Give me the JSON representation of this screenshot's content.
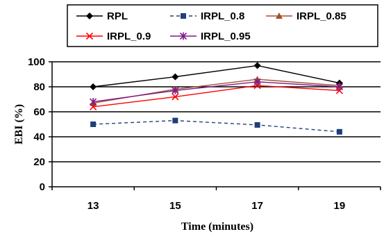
{
  "chart_data": {
    "type": "line",
    "title": "",
    "xlabel": "Time (minutes)",
    "ylabel": "EBI (%)",
    "categories": [
      "13",
      "15",
      "17",
      "19"
    ],
    "ylim": [
      0,
      100
    ],
    "yticks": [
      0,
      20,
      40,
      60,
      80,
      100
    ],
    "grid": "horizontal",
    "legend_position": "top",
    "series": [
      {
        "name": "RPL",
        "values": [
          80,
          88,
          97,
          83
        ],
        "color": "#000000",
        "marker": "diamond",
        "dash": "solid"
      },
      {
        "name": "IRPL_0.8",
        "values": [
          50,
          53,
          49.5,
          44
        ],
        "color": "#1f3f7a",
        "marker": "square",
        "dash": "dashed"
      },
      {
        "name": "IRPL_0.85",
        "values": [
          67,
          78,
          86,
          81
        ],
        "color": "#a0522d",
        "marker": "triangle",
        "dash": "solid"
      },
      {
        "name": "IRPL_0.9",
        "values": [
          64,
          72,
          81,
          77
        ],
        "color": "#ff0000",
        "marker": "x",
        "dash": "solid"
      },
      {
        "name": "IRPL_0.95",
        "values": [
          68,
          77,
          84,
          80
        ],
        "color": "#7f1a8a",
        "marker": "asterisk",
        "dash": "solid"
      }
    ]
  }
}
